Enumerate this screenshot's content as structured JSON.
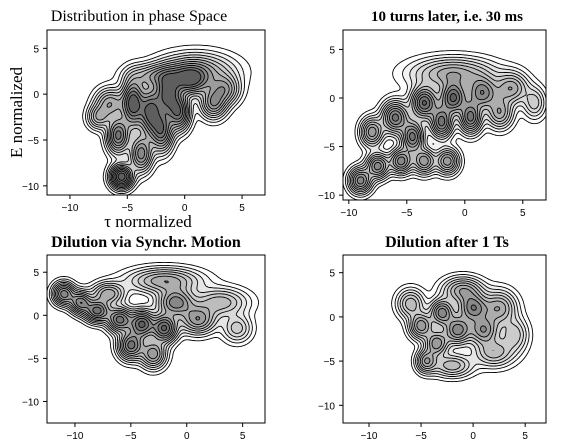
{
  "chart_data": [
    {
      "type": "contour",
      "title": "Distribution in phase Space",
      "title_bold": false,
      "xlabel": "τ normalized",
      "ylabel": "E normalized",
      "xlim": [
        -12,
        7
      ],
      "ylim": [
        -11,
        7
      ],
      "xticks": [
        -10,
        -5,
        0,
        5
      ],
      "yticks": [
        5,
        0,
        -5,
        -10
      ],
      "show_xticklabels": true,
      "show_yticklabels": true,
      "clusters": [
        {
          "x": -5.5,
          "y": -9.0,
          "w": 1.0,
          "sx": 0.6,
          "sy": 0.8
        },
        {
          "x": -5.8,
          "y": -4.5,
          "w": 0.8,
          "sx": 0.6,
          "sy": 1.2
        },
        {
          "x": -4.5,
          "y": -1.0,
          "w": 1.0,
          "sx": 0.6,
          "sy": 1.6
        },
        {
          "x": -3.8,
          "y": -6.5,
          "w": 0.7,
          "sx": 0.6,
          "sy": 1.2
        },
        {
          "x": -3.0,
          "y": -2.0,
          "w": 0.9,
          "sx": 0.6,
          "sy": 1.6
        },
        {
          "x": -2.0,
          "y": -4.0,
          "w": 0.8,
          "sx": 0.6,
          "sy": 1.4
        },
        {
          "x": -1.5,
          "y": 0.0,
          "w": 0.9,
          "sx": 0.7,
          "sy": 1.4
        },
        {
          "x": -0.5,
          "y": -2.0,
          "w": 0.8,
          "sx": 0.6,
          "sy": 1.2
        },
        {
          "x": 0.5,
          "y": 1.5,
          "w": 0.7,
          "sx": 1.0,
          "sy": 1.0
        },
        {
          "x": -6.5,
          "y": -1.0,
          "w": 0.5,
          "sx": 0.8,
          "sy": 1.0
        },
        {
          "x": -7.5,
          "y": -2.5,
          "w": 0.4,
          "sx": 0.6,
          "sy": 0.8
        },
        {
          "x": 2.5,
          "y": -1.0,
          "w": 0.6,
          "sx": 0.7,
          "sy": 1.0
        },
        {
          "x": 3.5,
          "y": 0.5,
          "w": 0.5,
          "sx": 0.8,
          "sy": 1.0
        },
        {
          "x": 1.0,
          "y": 2.5,
          "w": 0.5,
          "sx": 2.0,
          "sy": 1.2
        },
        {
          "x": -2.5,
          "y": 2.0,
          "w": 0.4,
          "sx": 1.5,
          "sy": 0.8
        }
      ]
    },
    {
      "type": "contour",
      "title": "10 turns later, i.e. 30 ms",
      "title_bold": true,
      "xlabel": "",
      "ylabel": "",
      "xlim": [
        -10.5,
        7
      ],
      "ylim": [
        -10.5,
        7
      ],
      "xticks": [
        -10,
        -5,
        0,
        5
      ],
      "yticks": [
        5,
        0,
        -5,
        -10
      ],
      "show_xticklabels": true,
      "show_yticklabels": true,
      "clusters": [
        {
          "x": -9.0,
          "y": -8.5,
          "w": 0.7,
          "sx": 0.6,
          "sy": 0.8
        },
        {
          "x": -7.5,
          "y": -7.0,
          "w": 0.7,
          "sx": 0.6,
          "sy": 0.8
        },
        {
          "x": -5.5,
          "y": -6.5,
          "w": 0.7,
          "sx": 0.6,
          "sy": 0.8
        },
        {
          "x": -3.5,
          "y": -6.5,
          "w": 0.6,
          "sx": 0.6,
          "sy": 0.8
        },
        {
          "x": -1.5,
          "y": -6.5,
          "w": 0.6,
          "sx": 0.6,
          "sy": 0.8
        },
        {
          "x": -8.0,
          "y": -3.5,
          "w": 0.6,
          "sx": 0.6,
          "sy": 0.9
        },
        {
          "x": -6.0,
          "y": -2.0,
          "w": 0.8,
          "sx": 0.7,
          "sy": 1.0
        },
        {
          "x": -4.5,
          "y": -4.0,
          "w": 0.8,
          "sx": 0.6,
          "sy": 1.0
        },
        {
          "x": -3.5,
          "y": -0.5,
          "w": 0.9,
          "sx": 0.7,
          "sy": 1.0
        },
        {
          "x": -2.0,
          "y": -2.5,
          "w": 0.8,
          "sx": 0.6,
          "sy": 1.0
        },
        {
          "x": -1.0,
          "y": 0.0,
          "w": 0.9,
          "sx": 0.7,
          "sy": 1.0
        },
        {
          "x": 0.5,
          "y": -2.0,
          "w": 0.8,
          "sx": 0.6,
          "sy": 1.0
        },
        {
          "x": 1.5,
          "y": 0.5,
          "w": 0.7,
          "sx": 0.8,
          "sy": 1.0
        },
        {
          "x": 3.0,
          "y": -1.5,
          "w": 0.5,
          "sx": 0.7,
          "sy": 1.0
        },
        {
          "x": 4.0,
          "y": 1.0,
          "w": 0.5,
          "sx": 0.9,
          "sy": 1.0
        },
        {
          "x": -1.0,
          "y": 2.5,
          "w": 0.5,
          "sx": 2.2,
          "sy": 1.0
        },
        {
          "x": 6.0,
          "y": -0.5,
          "w": 0.3,
          "sx": 0.6,
          "sy": 1.0
        }
      ]
    },
    {
      "type": "contour",
      "title": "Dilution via Synchr. Motion",
      "title_bold": true,
      "xlabel": "",
      "ylabel": "",
      "xlim": [
        -12.5,
        7
      ],
      "ylim": [
        -12.5,
        7
      ],
      "xticks": [
        -10,
        -5,
        0,
        5
      ],
      "yticks": [
        5,
        0,
        -5,
        -10
      ],
      "show_xticklabels": true,
      "show_yticklabels": true,
      "clusters": [
        {
          "x": -11.0,
          "y": 2.5,
          "w": 0.7,
          "sx": 0.6,
          "sy": 0.8
        },
        {
          "x": -9.5,
          "y": 1.5,
          "w": 0.7,
          "sx": 0.6,
          "sy": 0.8
        },
        {
          "x": -8.0,
          "y": 0.5,
          "w": 0.8,
          "sx": 0.7,
          "sy": 0.8
        },
        {
          "x": -6.0,
          "y": -0.5,
          "w": 0.8,
          "sx": 0.7,
          "sy": 0.9
        },
        {
          "x": -4.0,
          "y": -1.0,
          "w": 0.9,
          "sx": 0.7,
          "sy": 1.0
        },
        {
          "x": -2.0,
          "y": -1.5,
          "w": 0.9,
          "sx": 0.7,
          "sy": 1.0
        },
        {
          "x": -5.0,
          "y": -3.5,
          "w": 0.8,
          "sx": 0.7,
          "sy": 1.0
        },
        {
          "x": -3.0,
          "y": -4.5,
          "w": 0.6,
          "sx": 0.7,
          "sy": 1.0
        },
        {
          "x": -7.0,
          "y": 2.5,
          "w": 0.5,
          "sx": 0.9,
          "sy": 0.8
        },
        {
          "x": -1.0,
          "y": 1.5,
          "w": 0.7,
          "sx": 1.0,
          "sy": 1.0
        },
        {
          "x": 1.0,
          "y": -0.5,
          "w": 0.6,
          "sx": 1.0,
          "sy": 1.0
        },
        {
          "x": -2.0,
          "y": 4.0,
          "w": 0.5,
          "sx": 2.0,
          "sy": 0.9
        },
        {
          "x": 3.0,
          "y": 1.5,
          "w": 0.4,
          "sx": 1.5,
          "sy": 1.0
        },
        {
          "x": 4.5,
          "y": -1.5,
          "w": 0.3,
          "sx": 0.8,
          "sy": 1.0
        }
      ]
    },
    {
      "type": "contour",
      "title": "Dilution after 1 Ts",
      "title_bold": true,
      "xlabel": "",
      "ylabel": "",
      "xlim": [
        -12.5,
        7
      ],
      "ylim": [
        -12,
        7
      ],
      "xticks": [
        -10,
        -5,
        0,
        5
      ],
      "yticks": [
        5,
        0,
        -5,
        -10
      ],
      "show_xticklabels": true,
      "show_yticklabels": true,
      "clusters": [
        {
          "x": -4.5,
          "y": -5.0,
          "w": 0.5,
          "sx": 0.6,
          "sy": 0.8
        },
        {
          "x": -3.5,
          "y": -3.0,
          "w": 0.6,
          "sx": 0.7,
          "sy": 0.9
        },
        {
          "x": -5.0,
          "y": -1.0,
          "w": 0.6,
          "sx": 0.7,
          "sy": 0.9
        },
        {
          "x": -3.0,
          "y": 0.5,
          "w": 0.7,
          "sx": 0.7,
          "sy": 0.9
        },
        {
          "x": -1.5,
          "y": -1.5,
          "w": 0.7,
          "sx": 0.8,
          "sy": 1.0
        },
        {
          "x": 0.0,
          "y": 1.0,
          "w": 0.7,
          "sx": 0.9,
          "sy": 1.0
        },
        {
          "x": 1.0,
          "y": -1.5,
          "w": 0.6,
          "sx": 0.9,
          "sy": 1.0
        },
        {
          "x": -1.0,
          "y": 3.0,
          "w": 0.5,
          "sx": 1.2,
          "sy": 0.9
        },
        {
          "x": 2.5,
          "y": 1.0,
          "w": 0.5,
          "sx": 1.0,
          "sy": 1.2
        },
        {
          "x": -6.0,
          "y": 1.5,
          "w": 0.4,
          "sx": 0.8,
          "sy": 1.0
        },
        {
          "x": 2.0,
          "y": -4.0,
          "w": 0.4,
          "sx": 1.2,
          "sy": 1.0
        },
        {
          "x": -2.0,
          "y": -5.5,
          "w": 0.4,
          "sx": 1.2,
          "sy": 0.8
        },
        {
          "x": 4.0,
          "y": -2.0,
          "w": 0.3,
          "sx": 0.8,
          "sy": 1.2
        }
      ]
    }
  ],
  "contour_levels": [
    0.03,
    0.07,
    0.12,
    0.18,
    0.25,
    0.33,
    0.42,
    0.52,
    0.63,
    0.75,
    0.88
  ],
  "fill_colors": [
    "#ffffff",
    "#f3f3f3",
    "#e6e6e6",
    "#d9d9d9",
    "#cccccc",
    "#bdbdbd",
    "#adadad",
    "#9c9c9c",
    "#888888",
    "#737373",
    "#5e5e5e"
  ]
}
